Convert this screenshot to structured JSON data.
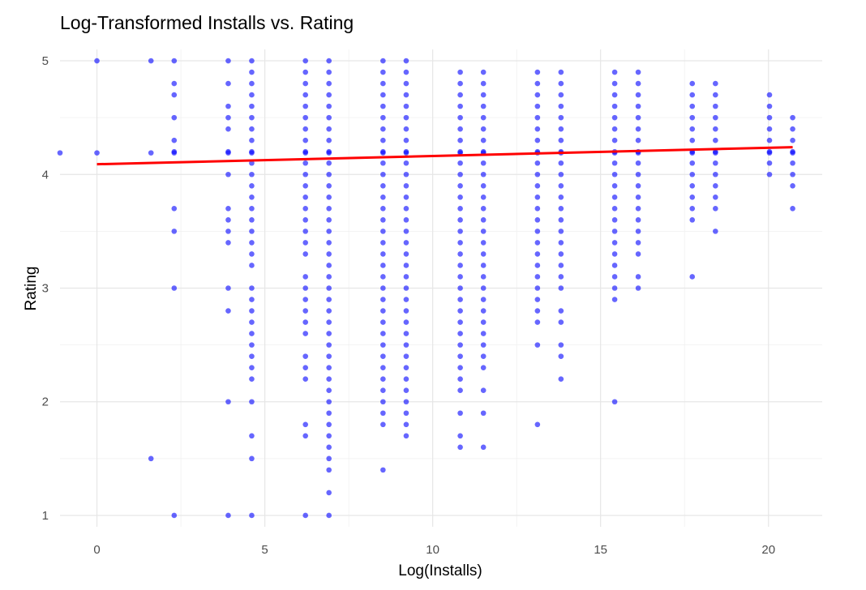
{
  "chart_data": {
    "type": "scatter",
    "title": "Log-Transformed Installs vs. Rating",
    "xlabel": "Log(Installs)",
    "ylabel": "Rating",
    "xlim": [
      -1.1,
      21.6
    ],
    "ylim": [
      0.9,
      5.1
    ],
    "x_ticks": [
      0,
      5,
      10,
      15,
      20
    ],
    "y_ticks": [
      1,
      2,
      3,
      4,
      5
    ],
    "grid": true,
    "point_color": "#0000ff",
    "line_color": "#ff0000",
    "series": [
      {
        "type": "points",
        "columns": [
          {
            "x": -1.1,
            "ratings": [
              4.19
            ]
          },
          {
            "x": 0.0,
            "ratings": [
              5.0,
              4.19
            ]
          },
          {
            "x": 1.61,
            "ratings": [
              5.0,
              4.19,
              1.5
            ]
          },
          {
            "x": 2.3,
            "ratings": [
              5.0,
              4.8,
              4.7,
              4.5,
              4.3,
              4.2,
              4.19,
              3.7,
              3.5,
              3.0,
              1.0
            ]
          },
          {
            "x": 3.91,
            "ratings": [
              5.0,
              4.8,
              4.6,
              4.5,
              4.4,
              4.2,
              4.19,
              4.0,
              3.7,
              3.6,
              3.5,
              3.4,
              3.0,
              2.8,
              2.0,
              1.0
            ]
          },
          {
            "x": 4.61,
            "ratings": [
              5.0,
              4.9,
              4.8,
              4.7,
              4.6,
              4.5,
              4.4,
              4.3,
              4.2,
              4.19,
              4.1,
              4.0,
              3.9,
              3.8,
              3.7,
              3.6,
              3.5,
              3.4,
              3.3,
              3.2,
              3.0,
              2.9,
              2.8,
              2.7,
              2.6,
              2.5,
              2.4,
              2.3,
              2.2,
              2.0,
              1.7,
              1.5,
              1.0
            ]
          },
          {
            "x": 6.21,
            "ratings": [
              5.0,
              4.9,
              4.8,
              4.7,
              4.6,
              4.5,
              4.4,
              4.3,
              4.2,
              4.19,
              4.1,
              4.0,
              3.9,
              3.8,
              3.7,
              3.6,
              3.5,
              3.4,
              3.3,
              3.1,
              3.0,
              2.9,
              2.8,
              2.7,
              2.6,
              2.4,
              2.3,
              2.2,
              1.8,
              1.7,
              1.0
            ]
          },
          {
            "x": 6.91,
            "ratings": [
              5.0,
              4.9,
              4.8,
              4.7,
              4.6,
              4.5,
              4.4,
              4.3,
              4.2,
              4.19,
              4.1,
              4.0,
              3.9,
              3.8,
              3.7,
              3.6,
              3.5,
              3.4,
              3.3,
              3.2,
              3.1,
              3.0,
              2.9,
              2.8,
              2.7,
              2.6,
              2.5,
              2.4,
              2.3,
              2.2,
              2.1,
              2.0,
              1.9,
              1.8,
              1.7,
              1.6,
              1.5,
              1.4,
              1.2,
              1.0
            ]
          },
          {
            "x": 8.52,
            "ratings": [
              5.0,
              4.9,
              4.8,
              4.7,
              4.6,
              4.5,
              4.4,
              4.3,
              4.2,
              4.19,
              4.1,
              4.0,
              3.9,
              3.8,
              3.7,
              3.6,
              3.5,
              3.4,
              3.3,
              3.2,
              3.1,
              3.0,
              2.9,
              2.8,
              2.7,
              2.6,
              2.5,
              2.4,
              2.3,
              2.2,
              2.1,
              2.0,
              1.9,
              1.8,
              1.4
            ]
          },
          {
            "x": 9.21,
            "ratings": [
              5.0,
              4.9,
              4.8,
              4.7,
              4.6,
              4.5,
              4.4,
              4.3,
              4.2,
              4.19,
              4.1,
              4.0,
              3.9,
              3.8,
              3.7,
              3.6,
              3.5,
              3.4,
              3.3,
              3.2,
              3.1,
              3.0,
              2.9,
              2.8,
              2.7,
              2.6,
              2.5,
              2.4,
              2.3,
              2.2,
              2.1,
              2.0,
              1.9,
              1.8,
              1.7
            ]
          },
          {
            "x": 10.82,
            "ratings": [
              4.9,
              4.8,
              4.7,
              4.6,
              4.5,
              4.4,
              4.3,
              4.2,
              4.19,
              4.1,
              4.0,
              3.9,
              3.8,
              3.7,
              3.6,
              3.5,
              3.4,
              3.3,
              3.2,
              3.1,
              3.0,
              2.9,
              2.8,
              2.7,
              2.6,
              2.5,
              2.4,
              2.3,
              2.2,
              2.1,
              1.9,
              1.7,
              1.6
            ]
          },
          {
            "x": 11.51,
            "ratings": [
              4.9,
              4.8,
              4.7,
              4.6,
              4.5,
              4.4,
              4.3,
              4.2,
              4.19,
              4.1,
              4.0,
              3.9,
              3.8,
              3.7,
              3.6,
              3.5,
              3.4,
              3.3,
              3.2,
              3.1,
              3.0,
              2.9,
              2.8,
              2.7,
              2.6,
              2.5,
              2.4,
              2.3,
              2.1,
              1.9,
              1.6
            ]
          },
          {
            "x": 13.12,
            "ratings": [
              4.9,
              4.8,
              4.7,
              4.6,
              4.5,
              4.4,
              4.3,
              4.2,
              4.19,
              4.1,
              4.0,
              3.9,
              3.8,
              3.7,
              3.6,
              3.5,
              3.4,
              3.3,
              3.2,
              3.1,
              3.0,
              2.9,
              2.8,
              2.7,
              2.5,
              1.8
            ]
          },
          {
            "x": 13.82,
            "ratings": [
              4.9,
              4.8,
              4.7,
              4.6,
              4.5,
              4.4,
              4.3,
              4.2,
              4.19,
              4.1,
              4.0,
              3.9,
              3.8,
              3.7,
              3.6,
              3.5,
              3.4,
              3.3,
              3.2,
              3.1,
              3.0,
              2.8,
              2.7,
              2.5,
              2.4,
              2.2
            ]
          },
          {
            "x": 15.42,
            "ratings": [
              4.9,
              4.8,
              4.7,
              4.6,
              4.5,
              4.4,
              4.3,
              4.2,
              4.19,
              4.1,
              4.0,
              3.9,
              3.8,
              3.7,
              3.6,
              3.5,
              3.4,
              3.3,
              3.2,
              3.1,
              3.0,
              2.9,
              2.0
            ]
          },
          {
            "x": 16.12,
            "ratings": [
              4.9,
              4.8,
              4.7,
              4.6,
              4.5,
              4.4,
              4.3,
              4.2,
              4.19,
              4.1,
              4.0,
              3.9,
              3.8,
              3.7,
              3.6,
              3.5,
              3.4,
              3.3,
              3.1,
              3.0
            ]
          },
          {
            "x": 17.73,
            "ratings": [
              4.8,
              4.7,
              4.6,
              4.5,
              4.4,
              4.3,
              4.2,
              4.19,
              4.1,
              4.0,
              3.9,
              3.8,
              3.7,
              3.6,
              3.1
            ]
          },
          {
            "x": 18.42,
            "ratings": [
              4.8,
              4.7,
              4.6,
              4.5,
              4.4,
              4.3,
              4.2,
              4.19,
              4.1,
              4.0,
              3.9,
              3.8,
              3.7,
              3.5
            ]
          },
          {
            "x": 20.03,
            "ratings": [
              4.7,
              4.6,
              4.5,
              4.4,
              4.3,
              4.2,
              4.19,
              4.1,
              4.0
            ]
          },
          {
            "x": 20.72,
            "ratings": [
              4.5,
              4.4,
              4.3,
              4.2,
              4.19,
              4.1,
              4.0,
              3.9,
              3.7
            ]
          }
        ]
      },
      {
        "type": "regression_line",
        "x": [
          0,
          20.72
        ],
        "y": [
          4.09,
          4.24
        ]
      }
    ]
  }
}
